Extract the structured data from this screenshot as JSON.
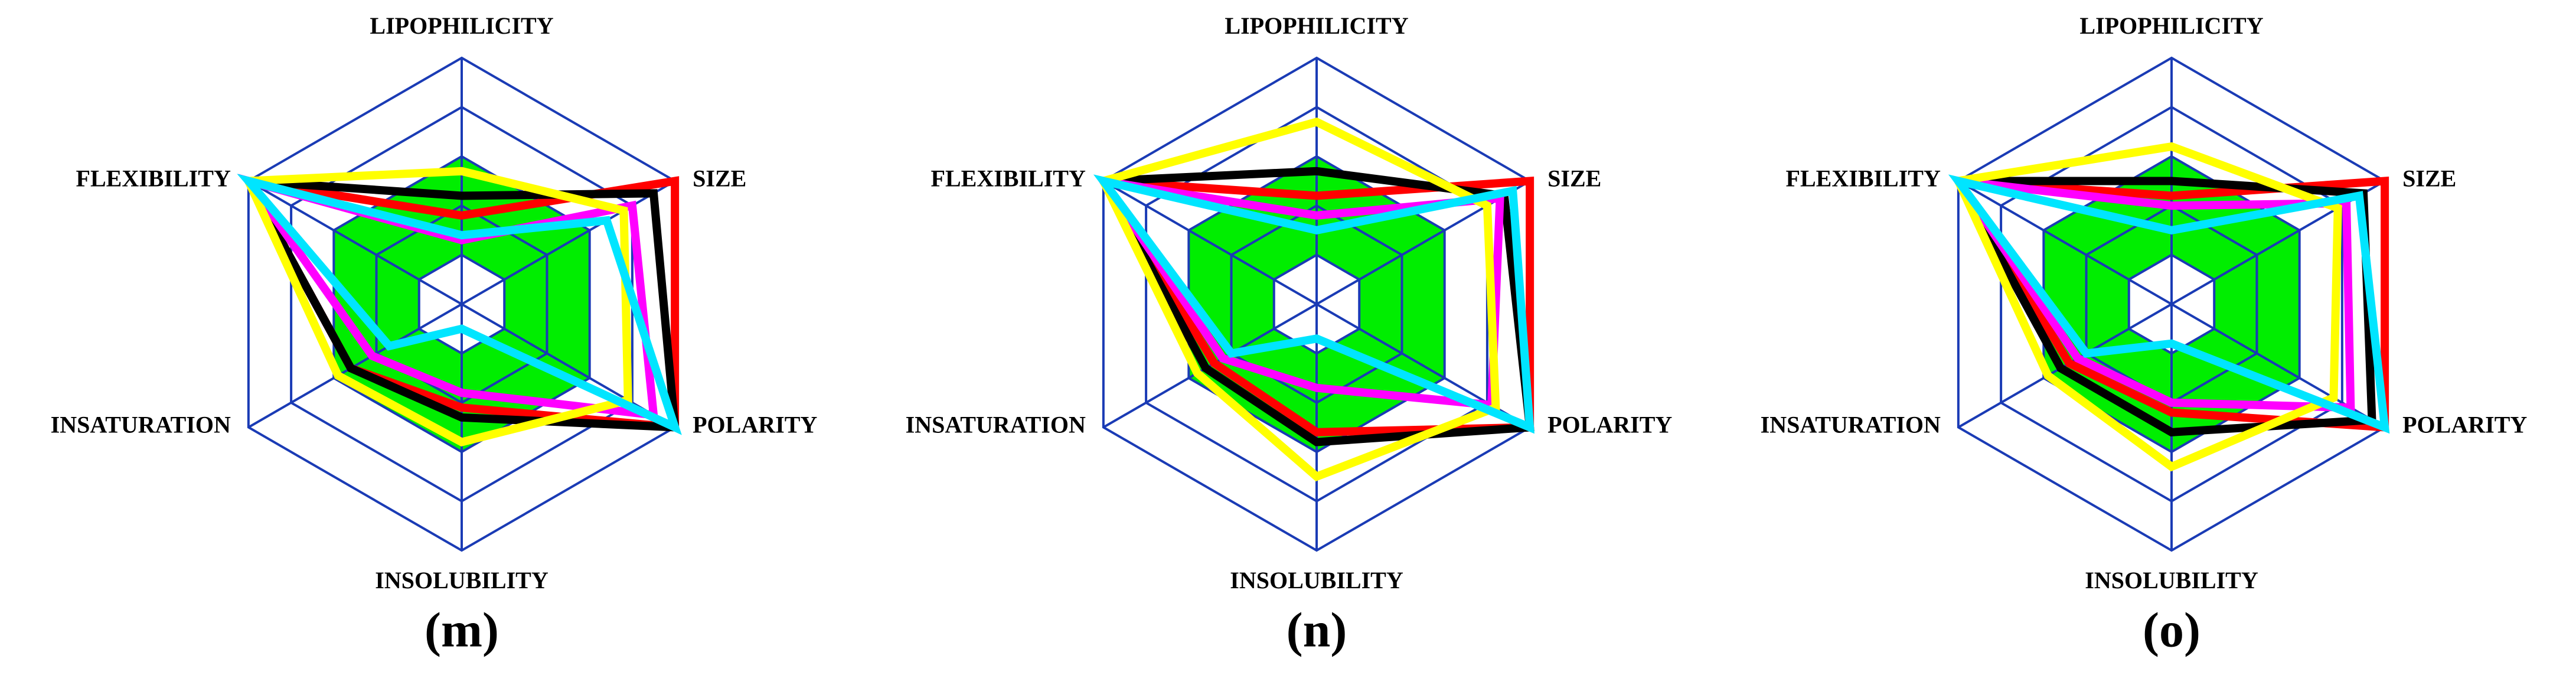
{
  "chart_data": [
    {
      "type": "radar",
      "title": "(m)",
      "categories": [
        "LIPOPHILICITY",
        "SIZE",
        "POLARITY",
        "INSOLUBILITY",
        "INSATURATION",
        "FLEXIBILITY"
      ],
      "rlim": [
        0,
        5
      ],
      "rticks": [
        1,
        2,
        3,
        4,
        5
      ],
      "grid_color": "#1a3bb5",
      "optimal_range": [
        1,
        3
      ],
      "optimal_color": "#00ee00",
      "series": [
        {
          "color": "#ff0000",
          "values": [
            1.8,
            5,
            5,
            2.1,
            2.6,
            5
          ]
        },
        {
          "color": "#000000",
          "values": [
            2.2,
            4.5,
            5,
            2.3,
            2.6,
            5
          ]
        },
        {
          "color": "#ff00ff",
          "values": [
            1.3,
            4.0,
            4.5,
            1.8,
            2.1,
            5
          ]
        },
        {
          "color": "#ffff00",
          "values": [
            2.7,
            3.8,
            3.9,
            2.8,
            2.9,
            5
          ]
        },
        {
          "color": "#00e5ff",
          "values": [
            1.4,
            3.4,
            5,
            0.5,
            1.7,
            5
          ]
        }
      ]
    },
    {
      "type": "radar",
      "title": "(n)",
      "categories": [
        "LIPOPHILICITY",
        "SIZE",
        "POLARITY",
        "INSOLUBILITY",
        "INSATURATION",
        "FLEXIBILITY"
      ],
      "rlim": [
        0,
        5
      ],
      "rticks": [
        1,
        2,
        3,
        4,
        5
      ],
      "grid_color": "#1a3bb5",
      "optimal_range": [
        1,
        3
      ],
      "optimal_color": "#00ee00",
      "series": [
        {
          "color": "#ff0000",
          "values": [
            2.2,
            5,
            5,
            2.6,
            2.4,
            5
          ]
        },
        {
          "color": "#000000",
          "values": [
            2.7,
            4.4,
            5,
            2.8,
            2.6,
            5
          ]
        },
        {
          "color": "#ff00ff",
          "values": [
            1.8,
            4.3,
            4.1,
            1.7,
            2.2,
            5
          ]
        },
        {
          "color": "#ffff00",
          "values": [
            3.7,
            4.0,
            4.2,
            3.5,
            2.8,
            5
          ]
        },
        {
          "color": "#00e5ff",
          "values": [
            1.5,
            4.6,
            5,
            0.7,
            2.0,
            5
          ]
        }
      ]
    },
    {
      "type": "radar",
      "title": "(o)",
      "categories": [
        "LIPOPHILICITY",
        "SIZE",
        "POLARITY",
        "INSOLUBILITY",
        "INSATURATION",
        "FLEXIBILITY"
      ],
      "rlim": [
        0,
        5
      ],
      "rticks": [
        1,
        2,
        3,
        4,
        5
      ],
      "grid_color": "#1a3bb5",
      "optimal_range": [
        1,
        3
      ],
      "optimal_color": "#00ee00",
      "series": [
        {
          "color": "#ff0000",
          "values": [
            2.2,
            5,
            5,
            2.2,
            2.4,
            5
          ]
        },
        {
          "color": "#000000",
          "values": [
            2.5,
            4.5,
            4.7,
            2.6,
            2.6,
            5
          ]
        },
        {
          "color": "#ff00ff",
          "values": [
            2.0,
            4.1,
            4.2,
            2.0,
            2.2,
            5
          ]
        },
        {
          "color": "#ffff00",
          "values": [
            3.2,
            3.9,
            3.8,
            3.3,
            2.9,
            5
          ]
        },
        {
          "color": "#00e5ff",
          "values": [
            1.5,
            4.4,
            5,
            0.8,
            2.0,
            5
          ]
        }
      ]
    }
  ]
}
